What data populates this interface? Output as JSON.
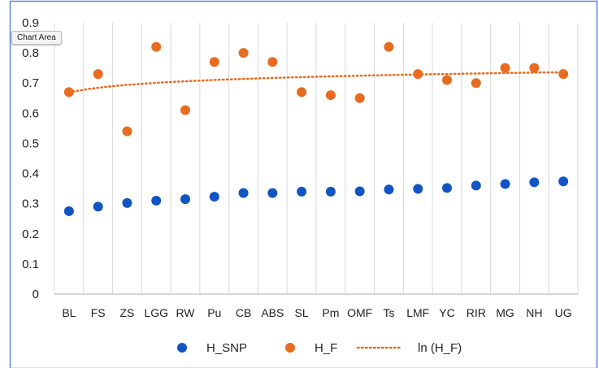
{
  "tooltip": "Chart Area",
  "colors": {
    "H_SNP": "#1155c4",
    "H_F": "#e86b1f",
    "frame": "#5b86d0",
    "grid": "#d9d9d9"
  },
  "chart_data": {
    "type": "scatter",
    "categories": [
      "BL",
      "FS",
      "ZS",
      "LGG",
      "RW",
      "Pu",
      "CB",
      "ABS",
      "SL",
      "Pm",
      "OMF",
      "Ts",
      "LMF",
      "YC",
      "RIR",
      "MG",
      "NH",
      "UG"
    ],
    "ylim": [
      0,
      0.9
    ],
    "yticks": [
      "0",
      "0.1",
      "0.2",
      "0.3",
      "0.4",
      "0.5",
      "0.6",
      "0.7",
      "0.8",
      "0.9"
    ],
    "grid": "vertical",
    "legend_position": "bottom",
    "series": [
      {
        "name": "H_SNP",
        "marker": "circle",
        "values": [
          0.275,
          0.29,
          0.302,
          0.31,
          0.315,
          0.323,
          0.335,
          0.335,
          0.34,
          0.34,
          0.341,
          0.347,
          0.349,
          0.352,
          0.36,
          0.365,
          0.371,
          0.374
        ]
      },
      {
        "name": "H_F",
        "marker": "circle",
        "values": [
          0.67,
          0.73,
          0.54,
          0.82,
          0.61,
          0.77,
          0.8,
          0.77,
          0.67,
          0.66,
          0.65,
          0.82,
          0.73,
          0.71,
          0.7,
          0.75,
          0.75,
          0.73
        ]
      }
    ],
    "trendline": {
      "name": "ln (H_F)",
      "type": "logarithmic",
      "of": "H_F",
      "style": "dotted"
    }
  }
}
